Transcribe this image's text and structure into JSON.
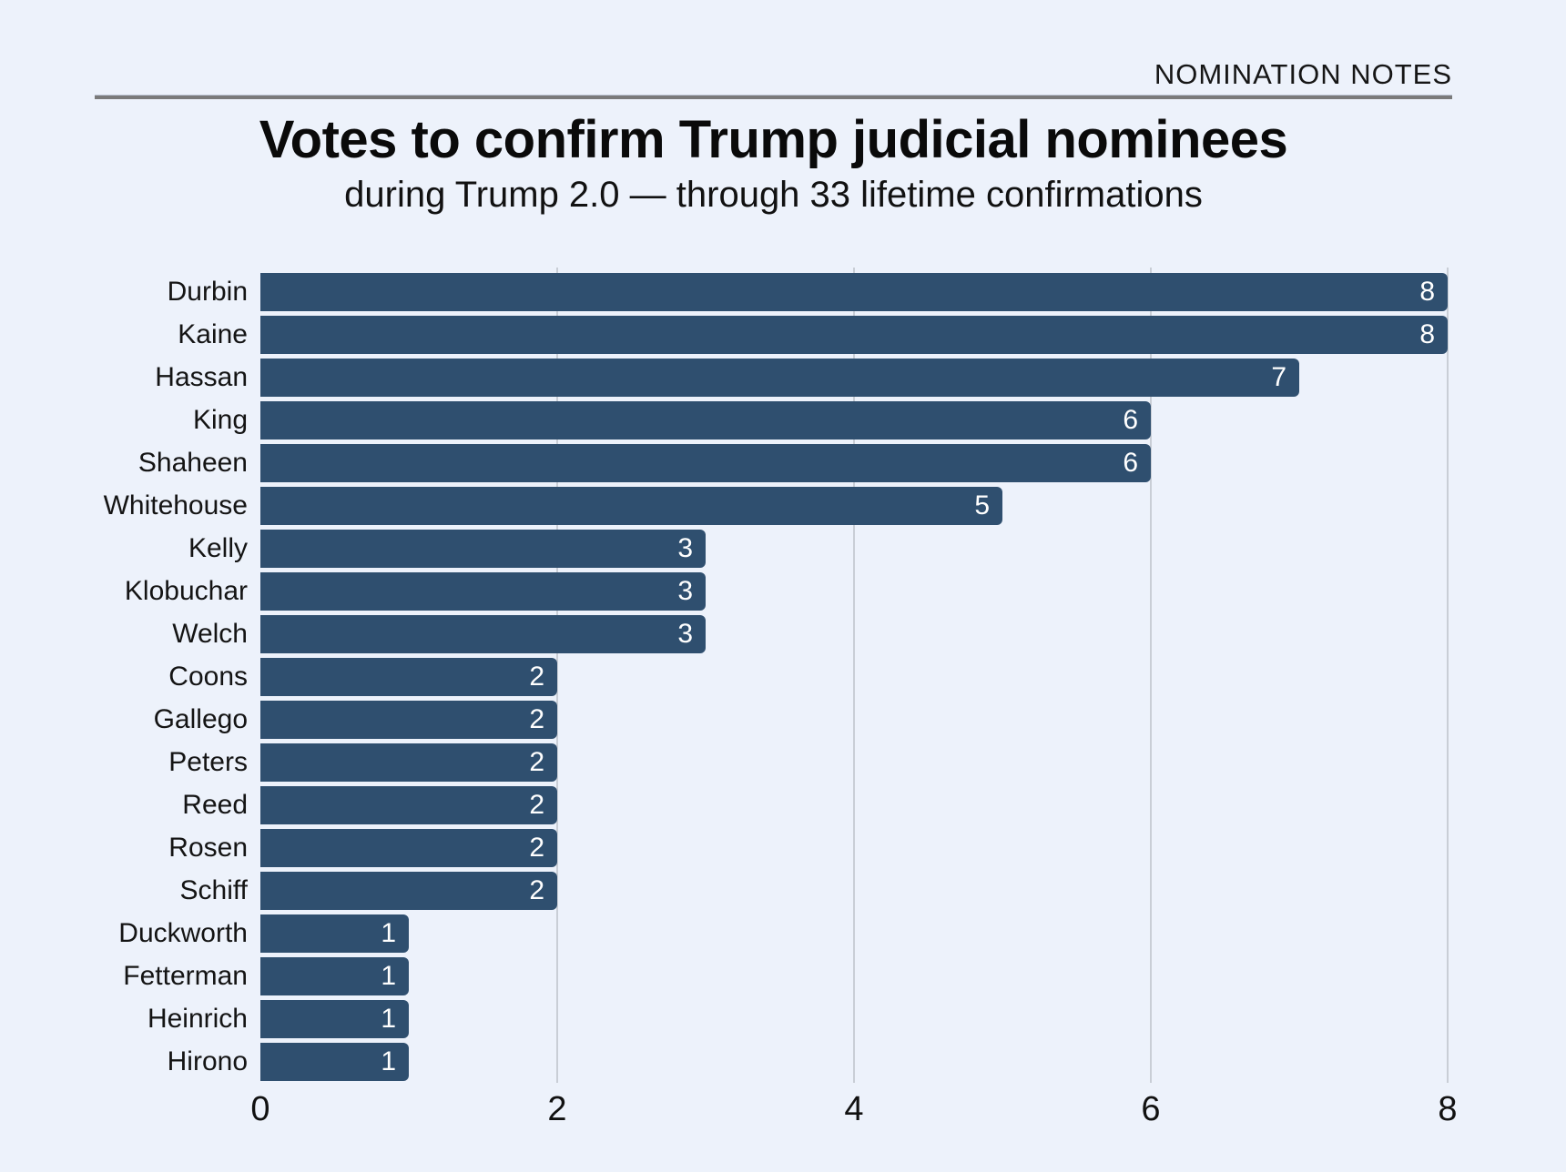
{
  "kicker": "NOMINATION NOTES",
  "title": "Votes to confirm Trump judicial nominees",
  "subtitle": "during Trump 2.0 — through 33 lifetime confirmations",
  "colors": {
    "background": "#EDF2FB",
    "bar": "#2F4F6F",
    "gridline": "#C9CED6",
    "rule": "#7A7A7A",
    "value_label": "#FFFFFF"
  },
  "chart_data": {
    "type": "bar",
    "orientation": "horizontal",
    "title": "Votes to confirm Trump judicial nominees",
    "subtitle": "during Trump 2.0 — through 33 lifetime confirmations",
    "categories": [
      "Durbin",
      "Kaine",
      "Hassan",
      "King",
      "Shaheen",
      "Whitehouse",
      "Kelly",
      "Klobuchar",
      "Welch",
      "Coons",
      "Gallego",
      "Peters",
      "Reed",
      "Rosen",
      "Schiff",
      "Duckworth",
      "Fetterman",
      "Heinrich",
      "Hirono"
    ],
    "values": [
      8,
      8,
      7,
      6,
      6,
      5,
      3,
      3,
      3,
      2,
      2,
      2,
      2,
      2,
      2,
      1,
      1,
      1,
      1
    ],
    "xlabel": "",
    "ylabel": "",
    "xlim": [
      0,
      8
    ],
    "xticks": [
      0,
      2,
      4,
      6,
      8
    ],
    "grid": true,
    "legend": false,
    "value_labels": "inside-end"
  }
}
